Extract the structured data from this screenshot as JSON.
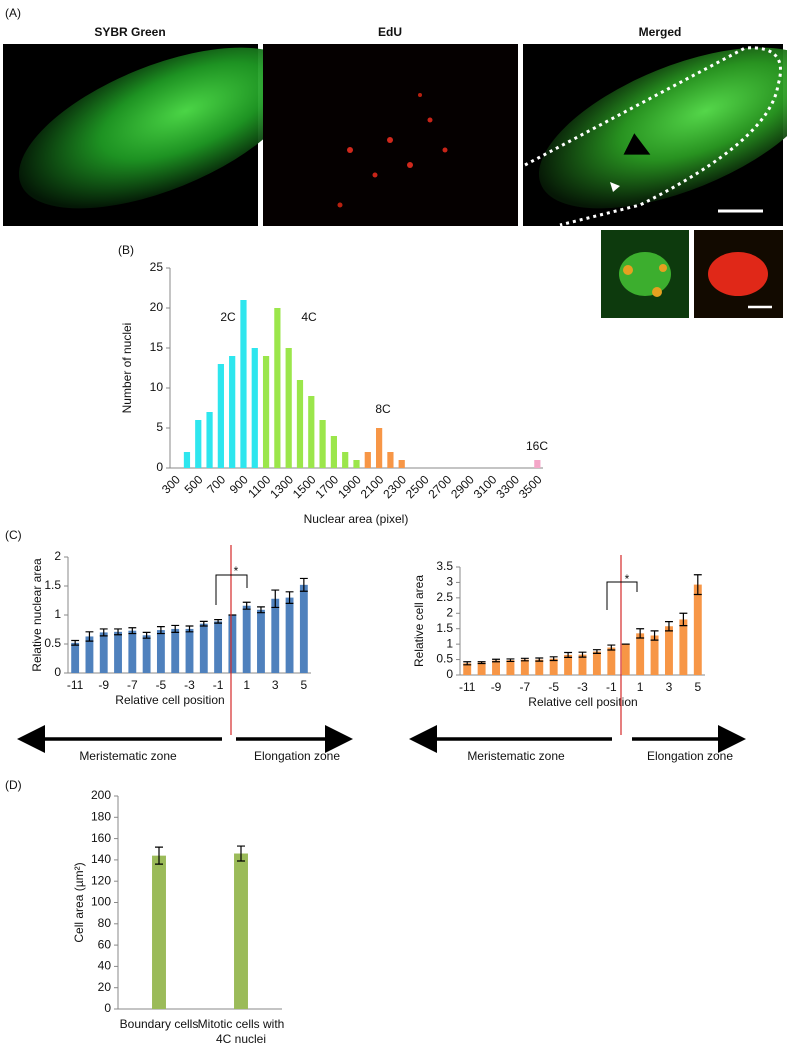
{
  "figure": {
    "panel_labels": [
      "(A)",
      "(B)",
      "(C)",
      "(D)"
    ],
    "image_titles": [
      "SYBR Green",
      "EdU",
      "Merged"
    ]
  },
  "chart_data": [
    {
      "type": "bar",
      "xlabel": "Nuclear area (pixel)",
      "ylabel": "Number of nuclei",
      "categories": [
        300,
        null,
        500,
        null,
        700,
        null,
        900,
        null,
        1100,
        null,
        1300,
        null,
        1500,
        null,
        1700,
        null,
        1900,
        null,
        2100,
        null,
        2300,
        null,
        2500,
        null,
        2700,
        null,
        2900,
        null,
        3100,
        null,
        3300,
        null,
        3500
      ],
      "values": [
        0,
        2,
        6,
        7,
        13,
        14,
        21,
        15,
        14,
        20,
        15,
        11,
        9,
        6,
        4,
        2,
        1,
        2,
        5,
        2,
        1,
        0,
        0,
        0,
        0,
        0,
        0,
        0,
        0,
        0,
        0,
        0,
        1
      ],
      "colors": [
        "#2ee6ee",
        "#2ee6ee",
        "#2ee6ee",
        "#2ee6ee",
        "#2ee6ee",
        "#2ee6ee",
        "#2ee6ee",
        "#2ee6ee",
        "#9be64b",
        "#9be64b",
        "#9be64b",
        "#9be64b",
        "#9be64b",
        "#9be64b",
        "#9be64b",
        "#9be64b",
        "#9be64b",
        "#f79646",
        "#f79646",
        "#f79646",
        "#f79646",
        "#f79646",
        "#f79646",
        "#f79646",
        "#f79646",
        "#f79646",
        "#f79646",
        "#f79646",
        "#f79646",
        "#f79646",
        "#f79646",
        "#f79646",
        "#f4a6c8"
      ],
      "ylim": [
        0,
        25
      ],
      "yticks": [
        0,
        5,
        10,
        15,
        20,
        25
      ],
      "annotations": [
        "2C",
        "4C",
        "8C",
        "16C"
      ]
    },
    {
      "type": "bar",
      "xlabel": "Relative cell position",
      "ylabel": "Relative nuclear area",
      "color": "#4f81bd",
      "categories": [
        -11,
        null,
        -9,
        null,
        -7,
        null,
        -5,
        null,
        -3,
        null,
        -1,
        null,
        1,
        null,
        3,
        null,
        5
      ],
      "values": [
        0.52,
        0.63,
        0.7,
        0.71,
        0.73,
        0.65,
        0.74,
        0.76,
        0.76,
        0.85,
        0.89,
        1.0,
        1.16,
        1.09,
        1.28,
        1.3,
        1.52
      ],
      "errors": [
        0.04,
        0.08,
        0.06,
        0.05,
        0.05,
        0.05,
        0.06,
        0.06,
        0.05,
        0.04,
        0.03,
        0,
        0.06,
        0.05,
        0.15,
        0.1,
        0.11
      ],
      "ylim": [
        0,
        2
      ],
      "yticks": [
        0,
        0.5,
        1,
        1.5,
        2
      ],
      "annotations": [
        "*",
        "Meristematic zone",
        "Elongation zone"
      ]
    },
    {
      "type": "bar",
      "xlabel": "Relative cell position",
      "ylabel": "Relative cell area",
      "color": "#f79646",
      "categories": [
        -11,
        null,
        -9,
        null,
        -7,
        null,
        -5,
        null,
        -3,
        null,
        -1,
        null,
        1,
        null,
        3,
        null,
        5
      ],
      "values": [
        0.38,
        0.4,
        0.47,
        0.48,
        0.5,
        0.5,
        0.53,
        0.65,
        0.66,
        0.76,
        0.89,
        1.0,
        1.35,
        1.28,
        1.58,
        1.8,
        2.93
      ],
      "errors": [
        0.05,
        0.03,
        0.04,
        0.04,
        0.04,
        0.05,
        0.06,
        0.08,
        0.08,
        0.06,
        0.08,
        0,
        0.15,
        0.15,
        0.15,
        0.2,
        0.32
      ],
      "ylim": [
        0,
        3.5
      ],
      "yticks": [
        0,
        0.5,
        1,
        1.5,
        2,
        2.5,
        3,
        3.5
      ],
      "annotations": [
        "*",
        "Meristematic zone",
        "Elongation zone"
      ]
    },
    {
      "type": "bar",
      "ylabel": "Cell  area (µm²)",
      "color": "#9bbb59",
      "categories": [
        "Boundary cells",
        "Mitotic cells with 4C nuclei"
      ],
      "values": [
        144,
        146
      ],
      "errors": [
        8,
        7
      ],
      "ylim": [
        0,
        200
      ],
      "yticks": [
        0,
        20,
        40,
        60,
        80,
        100,
        120,
        140,
        160,
        180,
        200
      ]
    }
  ]
}
